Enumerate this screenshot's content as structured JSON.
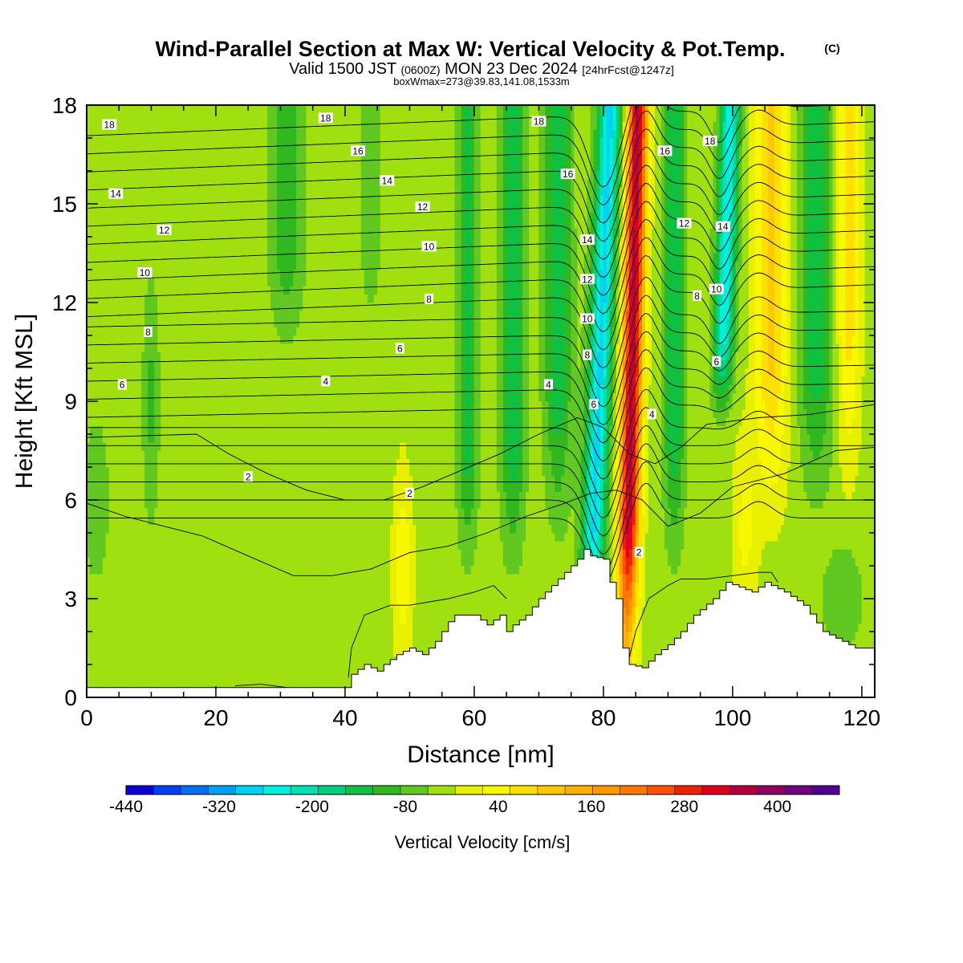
{
  "title": {
    "main": "Wind-Parallel Section at Max W: Vertical Velocity & Pot.Temp.",
    "copyright": "(C)",
    "valid_prefix": "Valid 1500 JST",
    "valid_zulu": "(0600Z)",
    "valid_date": "MON 23 Dec 2024",
    "forecast": "[24hrFcst@1247z]",
    "box_info": "boxWmax=273@39.83,141.08,1533m"
  },
  "chart_data": {
    "type": "heatmap",
    "xlabel": "Distance [nm]",
    "ylabel": "Height [Kft MSL]",
    "xlim": [
      0,
      122
    ],
    "ylim": [
      0,
      18
    ],
    "x_ticks": [
      0,
      20,
      40,
      60,
      80,
      100,
      120
    ],
    "y_ticks": [
      0,
      3,
      6,
      9,
      12,
      15,
      18
    ],
    "colorbar": {
      "label": "Vertical Velocity [cm/s]",
      "range": [
        -440,
        480
      ],
      "step": 40,
      "tick_labels": [
        -440,
        -320,
        -200,
        -80,
        40,
        160,
        280,
        400
      ],
      "colors": [
        "#0a00d6",
        "#0040f0",
        "#0070f0",
        "#00a0f0",
        "#00d2f0",
        "#00f0e0",
        "#00e0b0",
        "#00d080",
        "#10c040",
        "#30b820",
        "#60c820",
        "#a0e010",
        "#e8f000",
        "#f8f800",
        "#ffe000",
        "#ffc800",
        "#ffb000",
        "#ff9800",
        "#ff7800",
        "#ff5000",
        "#f02000",
        "#e00020",
        "#b00040",
        "#900060",
        "#700080",
        "#500090"
      ]
    },
    "features": [
      {
        "type": "updraft",
        "center_x": 85,
        "peak_cm_s": 420,
        "top_kft": 18
      },
      {
        "type": "downdraft",
        "center_x": 79,
        "peak_cm_s": -260,
        "top_kft": 18
      },
      {
        "type": "downdraft",
        "center_x": 98,
        "peak_cm_s": -240,
        "top_kft": 18
      }
    ],
    "theta_contour_labels": [
      {
        "text": "18",
        "x": 3.5,
        "y": 17.4
      },
      {
        "text": "18",
        "x": 37,
        "y": 17.6
      },
      {
        "text": "18",
        "x": 70,
        "y": 17.5
      },
      {
        "text": "16",
        "x": 42,
        "y": 16.6
      },
      {
        "text": "16",
        "x": 74.5,
        "y": 15.9
      },
      {
        "text": "16",
        "x": 89.5,
        "y": 16.6
      },
      {
        "text": "18",
        "x": 96.5,
        "y": 16.9
      },
      {
        "text": "14",
        "x": 4.5,
        "y": 15.3
      },
      {
        "text": "14",
        "x": 46.5,
        "y": 15.7
      },
      {
        "text": "14",
        "x": 77.5,
        "y": 13.9
      },
      {
        "text": "14",
        "x": 98.5,
        "y": 14.3
      },
      {
        "text": "12",
        "x": 12,
        "y": 14.2
      },
      {
        "text": "12",
        "x": 52,
        "y": 14.9
      },
      {
        "text": "12",
        "x": 77.5,
        "y": 12.7
      },
      {
        "text": "12",
        "x": 92.5,
        "y": 14.4
      },
      {
        "text": "10",
        "x": 9,
        "y": 12.9
      },
      {
        "text": "10",
        "x": 53,
        "y": 13.7
      },
      {
        "text": "10",
        "x": 77.5,
        "y": 11.5
      },
      {
        "text": "10",
        "x": 97.5,
        "y": 12.4
      },
      {
        "text": "8",
        "x": 9.5,
        "y": 11.1
      },
      {
        "text": "8",
        "x": 53,
        "y": 12.1
      },
      {
        "text": "8",
        "x": 77.5,
        "y": 10.4
      },
      {
        "text": "8",
        "x": 94.5,
        "y": 12.2
      },
      {
        "text": "6",
        "x": 5.5,
        "y": 9.5
      },
      {
        "text": "6",
        "x": 48.5,
        "y": 10.6
      },
      {
        "text": "6",
        "x": 78.5,
        "y": 8.9
      },
      {
        "text": "6",
        "x": 97.5,
        "y": 10.2
      },
      {
        "text": "4",
        "x": 37,
        "y": 9.6
      },
      {
        "text": "4",
        "x": 71.5,
        "y": 9.5
      },
      {
        "text": "4",
        "x": 87.5,
        "y": 8.6
      },
      {
        "text": "2",
        "x": 25,
        "y": 6.7
      },
      {
        "text": "2",
        "x": 50,
        "y": 6.2
      },
      {
        "text": "2",
        "x": 85.5,
        "y": 4.4
      }
    ]
  }
}
